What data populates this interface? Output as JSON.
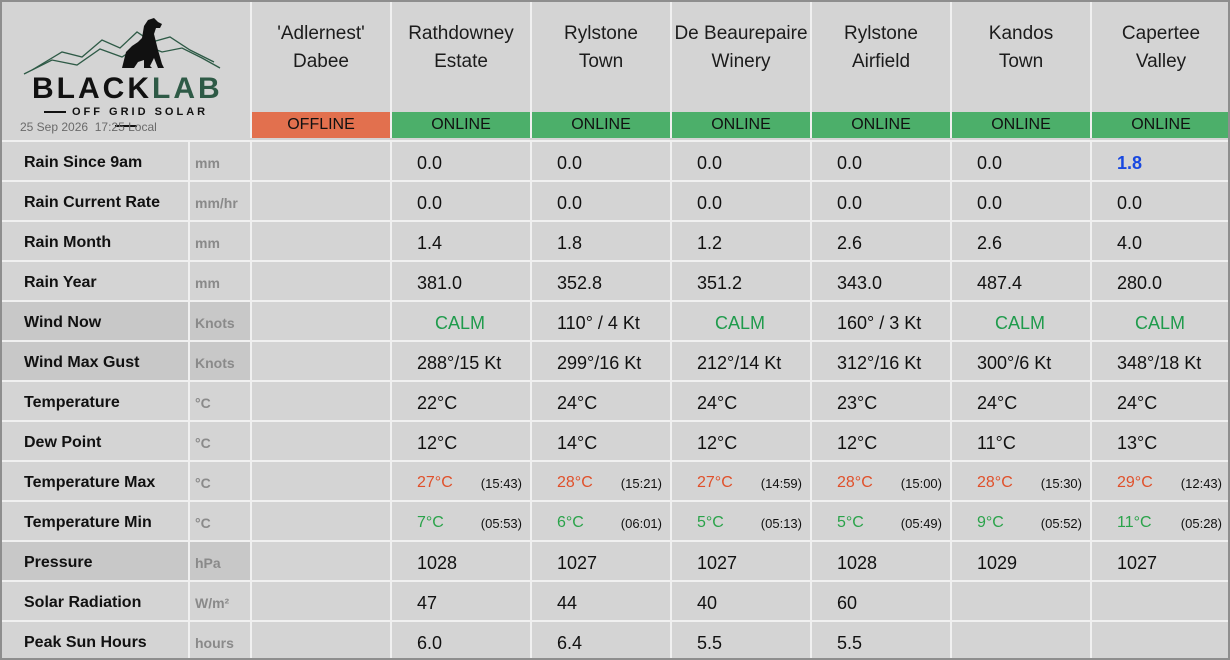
{
  "logo": {
    "brand_black": "BLACK",
    "brand_green": "LAB",
    "tagline": "OFF GRID SOLAR"
  },
  "timestamp": "25 Sep 2026  17:25 Local",
  "stations": [
    {
      "name1": "'Adlernest'",
      "name2": "Dabee",
      "status": "OFFLINE"
    },
    {
      "name1": "Rathdowney",
      "name2": "Estate",
      "status": "ONLINE"
    },
    {
      "name1": "Rylstone",
      "name2": "Town",
      "status": "ONLINE"
    },
    {
      "name1": "De Beaurepaire",
      "name2": "Winery",
      "status": "ONLINE"
    },
    {
      "name1": "Rylstone",
      "name2": "Airfield",
      "status": "ONLINE"
    },
    {
      "name1": "Kandos",
      "name2": "Town",
      "status": "ONLINE"
    },
    {
      "name1": "Capertee",
      "name2": "Valley",
      "status": "ONLINE"
    }
  ],
  "rows": [
    {
      "label": "Rain Since 9am",
      "unit": "mm",
      "values": [
        "",
        "0.0",
        "0.0",
        "0.0",
        "0.0",
        "0.0",
        "1.8"
      ]
    },
    {
      "label": "Rain Current Rate",
      "unit": "mm/hr",
      "values": [
        "",
        "0.0",
        "0.0",
        "0.0",
        "0.0",
        "0.0",
        "0.0"
      ]
    },
    {
      "label": "Rain Month",
      "unit": "mm",
      "values": [
        "",
        "1.4",
        "1.8",
        "1.2",
        "2.6",
        "2.6",
        "4.0"
      ]
    },
    {
      "label": "Rain Year",
      "unit": "mm",
      "values": [
        "",
        "381.0",
        "352.8",
        "351.2",
        "343.0",
        "487.4",
        "280.0"
      ]
    },
    {
      "label": "Wind Now",
      "unit": "Knots",
      "values": [
        "",
        "CALM",
        "110° / 4 Kt",
        "CALM",
        "160° / 3 Kt",
        "CALM",
        "CALM"
      ]
    },
    {
      "label": "Wind Max Gust",
      "unit": "Knots",
      "values": [
        "",
        "288°/15 Kt",
        "299°/16 Kt",
        "212°/14 Kt",
        "312°/16 Kt",
        "300°/6 Kt",
        "348°/18 Kt"
      ]
    },
    {
      "label": "Temperature",
      "unit": "°C",
      "values": [
        "",
        "22°C",
        "24°C",
        "24°C",
        "23°C",
        "24°C",
        "24°C"
      ]
    },
    {
      "label": "Dew Point",
      "unit": "°C",
      "values": [
        "",
        "12°C",
        "14°C",
        "12°C",
        "12°C",
        "11°C",
        "13°C"
      ]
    },
    {
      "label": "Temperature Max",
      "unit": "°C",
      "values": [
        "",
        "27°C",
        "28°C",
        "27°C",
        "28°C",
        "28°C",
        "29°C"
      ],
      "times": [
        "",
        "(15:43)",
        "(15:21)",
        "(14:59)",
        "(15:00)",
        "(15:30)",
        "(12:43)"
      ]
    },
    {
      "label": "Temperature Min",
      "unit": "°C",
      "values": [
        "",
        "7°C",
        "6°C",
        "5°C",
        "5°C",
        "9°C",
        "11°C"
      ],
      "times": [
        "",
        "(05:53)",
        "(06:01)",
        "(05:13)",
        "(05:49)",
        "(05:52)",
        "(05:28)"
      ]
    },
    {
      "label": "Pressure",
      "unit": "hPa",
      "values": [
        "",
        "1028",
        "1027",
        "1027",
        "1028",
        "1029",
        "1027"
      ]
    },
    {
      "label": "Solar Radiation",
      "unit": "W/m²",
      "values": [
        "",
        "47",
        "44",
        "40",
        "60",
        "",
        ""
      ]
    },
    {
      "label": "Peak Sun Hours",
      "unit": "hours",
      "values": [
        "",
        "6.0",
        "6.4",
        "5.5",
        "5.5",
        "",
        ""
      ]
    }
  ],
  "colors": {
    "offline": "#e2704e",
    "online": "#4caf6a",
    "tmax": "#e0502a",
    "tmin": "#2aa34a",
    "calm": "#1f9b4c",
    "rain_highlight": "#1848e0",
    "logo_green": "#2e5a46"
  }
}
